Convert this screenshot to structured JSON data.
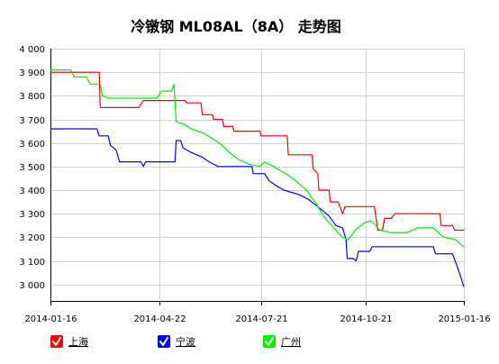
{
  "chart_data": {
    "type": "line",
    "title": "冷镦钢 ML08AL（8A） 走势图",
    "xlabel": "",
    "ylabel": "",
    "x_start": "2014-01-16",
    "x_end": "2015-01-16",
    "x_ticks": [
      "2014-01-16",
      "2014-04-22",
      "2014-07-21",
      "2014-10-21",
      "2015-01-16"
    ],
    "ylim": [
      2930,
      4000
    ],
    "y_ticks": [
      3000,
      3100,
      3200,
      3300,
      3400,
      3500,
      3600,
      3700,
      3800,
      3900,
      4000
    ],
    "y_tick_labels": [
      "3 000",
      "3 100",
      "3 200",
      "3 300",
      "3 400",
      "3 500",
      "3 600",
      "3 700",
      "3 800",
      "3 900",
      "4 000"
    ],
    "grid": {
      "horizontal": true,
      "vertical": true
    },
    "legend_position": "bottom",
    "series": [
      {
        "name": "上海",
        "color": "#ff0000",
        "points": [
          [
            "2014-01-16",
            3900
          ],
          [
            "2014-02-28",
            3900
          ],
          [
            "2014-03-01",
            3750
          ],
          [
            "2014-04-04",
            3750
          ],
          [
            "2014-04-08",
            3780
          ],
          [
            "2014-05-15",
            3780
          ],
          [
            "2014-05-16",
            3770
          ],
          [
            "2014-05-29",
            3770
          ],
          [
            "2014-05-30",
            3720
          ],
          [
            "2014-06-08",
            3720
          ],
          [
            "2014-06-09",
            3700
          ],
          [
            "2014-06-17",
            3700
          ],
          [
            "2014-06-18",
            3670
          ],
          [
            "2014-06-26",
            3670
          ],
          [
            "2014-06-27",
            3650
          ],
          [
            "2014-07-20",
            3650
          ],
          [
            "2014-07-21",
            3630
          ],
          [
            "2014-08-13",
            3630
          ],
          [
            "2014-08-14",
            3550
          ],
          [
            "2014-09-04",
            3550
          ],
          [
            "2014-09-05",
            3490
          ],
          [
            "2014-09-09",
            3470
          ],
          [
            "2014-09-10",
            3400
          ],
          [
            "2014-09-19",
            3400
          ],
          [
            "2014-09-20",
            3350
          ],
          [
            "2014-09-27",
            3350
          ],
          [
            "2014-10-01",
            3300
          ],
          [
            "2014-10-03",
            3330
          ],
          [
            "2014-10-29",
            3330
          ],
          [
            "2014-11-01",
            3230
          ],
          [
            "2014-11-05",
            3230
          ],
          [
            "2014-11-07",
            3280
          ],
          [
            "2014-11-13",
            3280
          ],
          [
            "2014-11-16",
            3300
          ],
          [
            "2014-12-26",
            3300
          ],
          [
            "2014-12-27",
            3250
          ],
          [
            "2015-01-06",
            3250
          ],
          [
            "2015-01-08",
            3230
          ],
          [
            "2015-01-16",
            3230
          ]
        ]
      },
      {
        "name": "宁波",
        "color": "#0000ff",
        "points": [
          [
            "2014-01-16",
            3660
          ],
          [
            "2014-02-26",
            3660
          ],
          [
            "2014-02-28",
            3630
          ],
          [
            "2014-03-08",
            3630
          ],
          [
            "2014-03-10",
            3590
          ],
          [
            "2014-03-15",
            3570
          ],
          [
            "2014-03-18",
            3520
          ],
          [
            "2014-04-06",
            3520
          ],
          [
            "2014-04-08",
            3500
          ],
          [
            "2014-04-10",
            3520
          ],
          [
            "2014-05-06",
            3520
          ],
          [
            "2014-05-07",
            3610
          ],
          [
            "2014-05-11",
            3610
          ],
          [
            "2014-05-13",
            3580
          ],
          [
            "2014-05-20",
            3560
          ],
          [
            "2014-05-30",
            3540
          ],
          [
            "2014-06-05",
            3520
          ],
          [
            "2014-06-13",
            3500
          ],
          [
            "2014-07-13",
            3500
          ],
          [
            "2014-07-14",
            3470
          ],
          [
            "2014-07-24",
            3470
          ],
          [
            "2014-07-28",
            3440
          ],
          [
            "2014-08-03",
            3420
          ],
          [
            "2014-08-10",
            3400
          ],
          [
            "2014-08-24",
            3380
          ],
          [
            "2014-09-01",
            3360
          ],
          [
            "2014-09-09",
            3330
          ],
          [
            "2014-09-19",
            3290
          ],
          [
            "2014-09-25",
            3250
          ],
          [
            "2014-10-01",
            3240
          ],
          [
            "2014-10-04",
            3190
          ],
          [
            "2014-10-05",
            3110
          ],
          [
            "2014-10-10",
            3110
          ],
          [
            "2014-10-13",
            3100
          ],
          [
            "2014-10-15",
            3140
          ],
          [
            "2014-10-25",
            3140
          ],
          [
            "2014-10-27",
            3160
          ],
          [
            "2014-12-20",
            3160
          ],
          [
            "2014-12-22",
            3130
          ],
          [
            "2015-01-06",
            3130
          ],
          [
            "2015-01-12",
            3050
          ],
          [
            "2015-01-16",
            2990
          ]
        ]
      },
      {
        "name": "广州",
        "color": "#00ee00",
        "points": [
          [
            "2014-01-16",
            3910
          ],
          [
            "2014-02-03",
            3910
          ],
          [
            "2014-02-06",
            3880
          ],
          [
            "2014-02-17",
            3880
          ],
          [
            "2014-02-20",
            3850
          ],
          [
            "2014-03-01",
            3850
          ],
          [
            "2014-03-03",
            3800
          ],
          [
            "2014-03-08",
            3790
          ],
          [
            "2014-04-12",
            3790
          ],
          [
            "2014-04-20",
            3790
          ],
          [
            "2014-04-24",
            3820
          ],
          [
            "2014-05-03",
            3820
          ],
          [
            "2014-05-05",
            3850
          ],
          [
            "2014-05-07",
            3690
          ],
          [
            "2014-05-14",
            3680
          ],
          [
            "2014-05-20",
            3660
          ],
          [
            "2014-06-01",
            3640
          ],
          [
            "2014-06-14",
            3600
          ],
          [
            "2014-06-23",
            3560
          ],
          [
            "2014-07-01",
            3530
          ],
          [
            "2014-07-10",
            3510
          ],
          [
            "2014-07-20",
            3500
          ],
          [
            "2014-07-24",
            3520
          ],
          [
            "2014-08-01",
            3500
          ],
          [
            "2014-08-08",
            3480
          ],
          [
            "2014-08-18",
            3450
          ],
          [
            "2014-08-30",
            3400
          ],
          [
            "2014-09-08",
            3340
          ],
          [
            "2014-09-14",
            3290
          ],
          [
            "2014-09-23",
            3240
          ],
          [
            "2014-10-01",
            3200
          ],
          [
            "2014-10-06",
            3190
          ],
          [
            "2014-10-12",
            3230
          ],
          [
            "2014-10-20",
            3260
          ],
          [
            "2014-10-26",
            3270
          ],
          [
            "2014-11-03",
            3230
          ],
          [
            "2014-11-12",
            3220
          ],
          [
            "2014-11-27",
            3220
          ],
          [
            "2014-12-06",
            3240
          ],
          [
            "2014-12-20",
            3240
          ],
          [
            "2014-12-29",
            3200
          ],
          [
            "2015-01-09",
            3190
          ],
          [
            "2015-01-13",
            3170
          ],
          [
            "2015-01-16",
            3160
          ]
        ]
      }
    ]
  }
}
